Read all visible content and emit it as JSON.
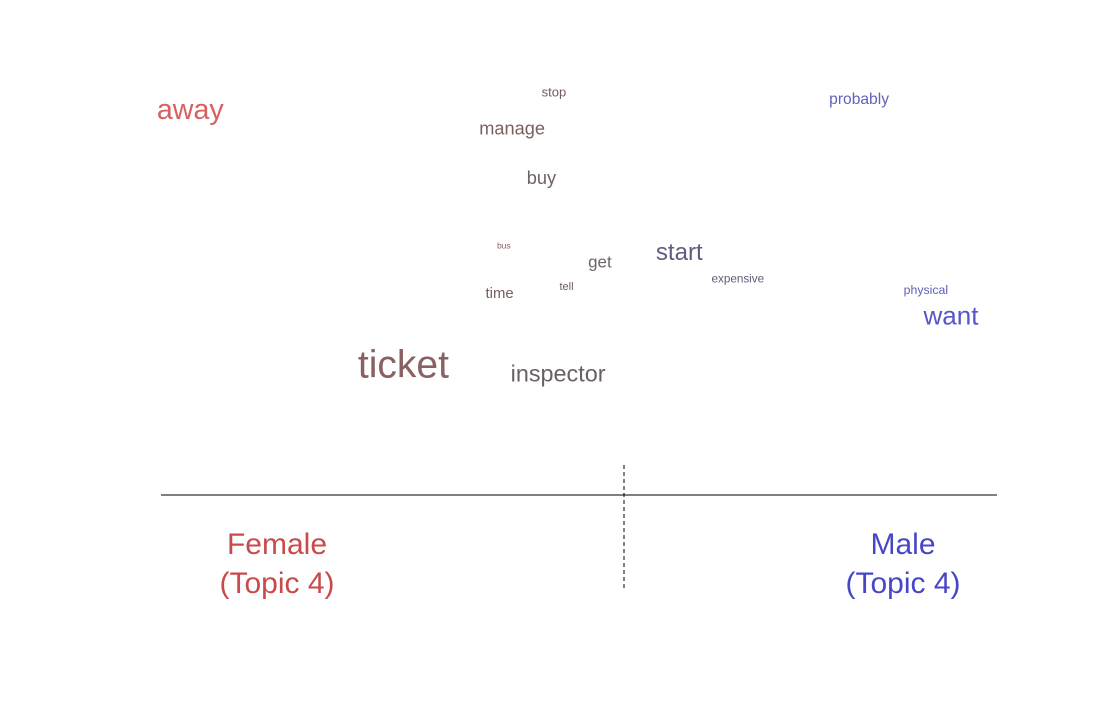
{
  "chart_data": {
    "type": "scatter",
    "title": "",
    "xlabel": "",
    "ylabel": "",
    "xlim": [
      -1,
      1
    ],
    "ylim": [
      0,
      1
    ],
    "grid": false,
    "legend": "none",
    "colors": {
      "female": "#c94a4a",
      "male": "#4a4ac9",
      "neutral": "#7a6a6a"
    },
    "points": [
      {
        "word": "away",
        "x": -0.93,
        "y": 0.91,
        "weight": 2.2,
        "color": "#d96060"
      },
      {
        "word": "stop",
        "x": -0.06,
        "y": 0.97,
        "weight": 1.0,
        "color": "#6e5c5c"
      },
      {
        "word": "probably",
        "x": 0.67,
        "y": 0.95,
        "weight": 1.2,
        "color": "#6060c0"
      },
      {
        "word": "manage",
        "x": -0.16,
        "y": 0.87,
        "weight": 1.4,
        "color": "#7a5f5f"
      },
      {
        "word": "buy",
        "x": -0.09,
        "y": 0.74,
        "weight": 1.4,
        "color": "#6e6262"
      },
      {
        "word": "bus",
        "x": -0.18,
        "y": 0.57,
        "weight": 0.65,
        "color": "#8a5a5a"
      },
      {
        "word": "start",
        "x": 0.24,
        "y": 0.54,
        "weight": 1.85,
        "color": "#5e5e7e"
      },
      {
        "word": "get",
        "x": 0.05,
        "y": 0.52,
        "weight": 1.3,
        "color": "#706464"
      },
      {
        "word": "expensive",
        "x": 0.38,
        "y": 0.48,
        "weight": 0.9,
        "color": "#5e5e78"
      },
      {
        "word": "tell",
        "x": -0.03,
        "y": 0.46,
        "weight": 0.85,
        "color": "#6e5c5c"
      },
      {
        "word": "physical",
        "x": 0.83,
        "y": 0.45,
        "weight": 0.95,
        "color": "#6060b8"
      },
      {
        "word": "time",
        "x": -0.19,
        "y": 0.44,
        "weight": 1.15,
        "color": "#7a5c5c"
      },
      {
        "word": "want",
        "x": 0.89,
        "y": 0.37,
        "weight": 2.0,
        "color": "#5555cc"
      },
      {
        "word": "ticket",
        "x": -0.42,
        "y": 0.23,
        "weight": 3.0,
        "color": "#8a6060"
      },
      {
        "word": "inspector",
        "x": -0.05,
        "y": 0.22,
        "weight": 1.8,
        "color": "#6a6262"
      }
    ],
    "groups": [
      {
        "side": "left",
        "name": "Female",
        "topic": "(Topic 4)",
        "color": "#c94a4a"
      },
      {
        "side": "right",
        "name": "Male",
        "topic": "(Topic 4)",
        "color": "#4646c8"
      }
    ]
  }
}
